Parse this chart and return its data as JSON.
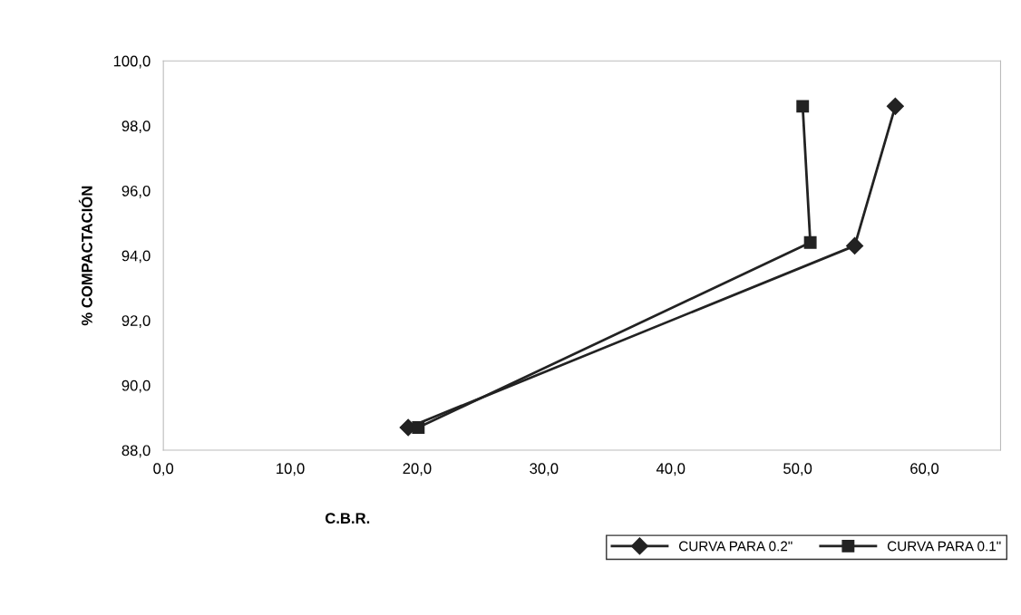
{
  "chart_data": {
    "type": "line",
    "xlabel": "C.B.R.",
    "ylabel": "% COMPACTACIÓN",
    "xlim": [
      0,
      66
    ],
    "ylim": [
      88,
      100
    ],
    "xticks": [
      {
        "value": 0,
        "label": "0,0"
      },
      {
        "value": 10,
        "label": "10,0"
      },
      {
        "value": 20,
        "label": "20,0"
      },
      {
        "value": 30,
        "label": "30,0"
      },
      {
        "value": 40,
        "label": "40,0"
      },
      {
        "value": 50,
        "label": "50,0"
      },
      {
        "value": 60,
        "label": "60,0"
      }
    ],
    "yticks": [
      {
        "value": 88,
        "label": "88,0"
      },
      {
        "value": 90,
        "label": "90,0"
      },
      {
        "value": 92,
        "label": "92,0"
      },
      {
        "value": 94,
        "label": "94,0"
      },
      {
        "value": 96,
        "label": "96,0"
      },
      {
        "value": 98,
        "label": "98,0"
      },
      {
        "value": 100,
        "label": "100,0"
      }
    ],
    "legend": "bottom right",
    "grid": false,
    "series": [
      {
        "name": "CURVA PARA 0.2\"",
        "color": "#222222",
        "marker": "diamond",
        "x": [
          19.3,
          54.5,
          57.7
        ],
        "values": [
          88.7,
          94.3,
          98.6
        ]
      },
      {
        "name": "CURVA PARA 0.1\"",
        "color": "#222222",
        "marker": "square",
        "x": [
          20.1,
          51.0,
          50.4
        ],
        "values": [
          88.7,
          94.4,
          98.6
        ]
      }
    ]
  }
}
